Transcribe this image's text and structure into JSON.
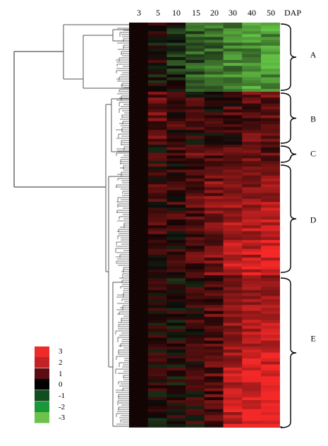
{
  "columns": [
    "3",
    "5",
    "10",
    "15",
    "20",
    "30",
    "40",
    "50"
  ],
  "axis_unit": "DAP",
  "clusters": [
    {
      "name": "A",
      "rows": 24,
      "profile": [
        0,
        0,
        -0.5,
        -1.2,
        -1.6,
        -2.0,
        -2.2,
        -2.3
      ]
    },
    {
      "name": "B",
      "rows": 18,
      "profile": [
        0,
        1.0,
        0.6,
        0.4,
        0.3,
        0.6,
        1.0,
        1.0
      ]
    },
    {
      "name": "C",
      "rows": 7,
      "profile": [
        0,
        0.3,
        0.5,
        1.0,
        1.0,
        0.7,
        1.0,
        1.0
      ]
    },
    {
      "name": "D",
      "rows": 38,
      "profile": [
        0,
        0.5,
        0.4,
        0.8,
        1.3,
        2.2,
        2.2,
        2.5
      ]
    },
    {
      "name": "E",
      "rows": 51,
      "profile": [
        0,
        0.1,
        0.1,
        0.3,
        0.8,
        2.2,
        2.7,
        2.9
      ]
    }
  ],
  "legend": {
    "levels": [
      "3",
      "2",
      "1",
      "0",
      "-1",
      "-2",
      "-3"
    ],
    "colors": [
      "#ee2a2a",
      "#c12226",
      "#5c0d12",
      "#000000",
      "#104d1f",
      "#1b9638",
      "#6cc24a"
    ]
  }
}
